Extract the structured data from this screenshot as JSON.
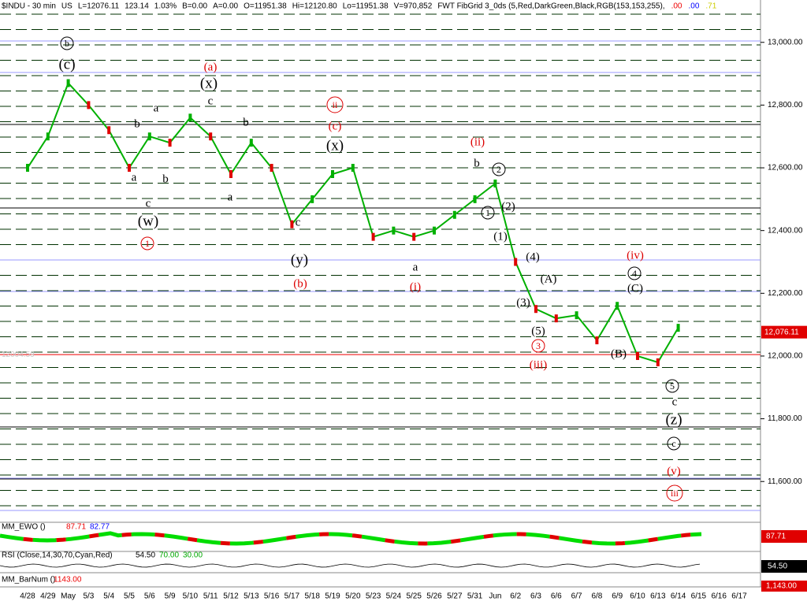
{
  "chart_data": {
    "type": "line",
    "header": [
      "$INDU - 30 min",
      "US",
      "L=12076.11",
      "123.14",
      "1.03%",
      "B=0.00",
      "A=0.00",
      "O=11951.38",
      "Hi=12120.80",
      "Lo=11951.38",
      "V=970,852",
      "FWT FibGrid 3_0ds (5,Red,DarkGreen,Black,RGB(153,153,255),",
      ".00",
      ".00",
      ".71"
    ],
    "categories": [
      "4/28",
      "4/29",
      "May",
      "5/3",
      "5/4",
      "5/5",
      "5/6",
      "5/9",
      "5/10",
      "5/11",
      "5/12",
      "5/13",
      "5/16",
      "5/17",
      "5/18",
      "5/19",
      "5/20",
      "5/23",
      "5/24",
      "5/25",
      "5/26",
      "5/27",
      "5/31",
      "Jun",
      "6/2",
      "6/3",
      "6/6",
      "6/7",
      "6/8",
      "6/9",
      "6/10",
      "6/13",
      "6/14",
      "6/15",
      "6/16",
      "6/17"
    ],
    "series": [
      {
        "name": "$INDU",
        "color": "#00b000",
        "down_color": "#e00000",
        "values": [
          12600,
          12700,
          12870,
          12800,
          12720,
          12600,
          12700,
          12680,
          12760,
          12700,
          12580,
          12680,
          12600,
          12420,
          12500,
          12580,
          12600,
          12380,
          12400,
          12380,
          12400,
          12450,
          12500,
          12550,
          12300,
          12150,
          12120,
          12130,
          12050,
          12160,
          12000,
          11980,
          12090,
          null,
          null,
          null
        ]
      }
    ],
    "ylim": [
      11470,
      13135
    ],
    "yticks": [
      {
        "value": 11600,
        "label": "11,600.00"
      },
      {
        "value": 11800,
        "label": "11,800.00"
      },
      {
        "value": 12000,
        "label": "12,000.00"
      },
      {
        "value": 12200,
        "label": "12,200.00"
      },
      {
        "value": 12400,
        "label": "12,400.00"
      },
      {
        "value": 12600,
        "label": "12,600.00"
      },
      {
        "value": 12800,
        "label": "12,800.00"
      },
      {
        "value": 13000,
        "label": "13,000.00"
      }
    ],
    "last_price": {
      "value": 12076.11,
      "label": "12,076.11"
    },
    "ref_price": {
      "value": 12004.59,
      "label": "12004.59"
    },
    "annotations": [
      {
        "text": "b",
        "circled": true,
        "color": "#000"
      },
      {
        "text": "(c)",
        "color": "#000"
      },
      {
        "text": "(a)",
        "color": "#d00"
      },
      {
        "text": "(x)",
        "color": "#000"
      },
      {
        "text": "c",
        "color": "#000"
      },
      {
        "text": "ii",
        "circled": true,
        "color": "#d00"
      },
      {
        "text": "(c)",
        "color": "#d00"
      },
      {
        "text": "(x)",
        "color": "#000"
      },
      {
        "text": "(ii)",
        "color": "#d00"
      },
      {
        "text": "b",
        "color": "#000"
      },
      {
        "text": "2",
        "circled": true,
        "color": "#000"
      },
      {
        "text": "(2)",
        "color": "#000"
      },
      {
        "text": "1",
        "circled": true,
        "color": "#000"
      },
      {
        "text": "(1)",
        "color": "#000"
      },
      {
        "text": "(4)",
        "color": "#000"
      },
      {
        "text": "(A)",
        "color": "#000"
      },
      {
        "text": "(3)",
        "color": "#000"
      },
      {
        "text": "(5)",
        "color": "#000"
      },
      {
        "text": "3",
        "circled": true,
        "color": "#d00"
      },
      {
        "text": "(iii)",
        "color": "#d00"
      },
      {
        "text": "(iv)",
        "color": "#d00"
      },
      {
        "text": "4",
        "circled": true,
        "color": "#000"
      },
      {
        "text": "(C)",
        "color": "#000"
      },
      {
        "text": "(B)",
        "color": "#000"
      },
      {
        "text": "5",
        "circled": true,
        "color": "#000"
      },
      {
        "text": "c",
        "color": "#000"
      },
      {
        "text": "(z)",
        "color": "#000"
      },
      {
        "text": "c",
        "circled": true,
        "color": "#000"
      },
      {
        "text": "(v)",
        "color": "#d00"
      },
      {
        "text": "iii",
        "circled": true,
        "color": "#d00"
      },
      {
        "text": "b",
        "color": "#000"
      },
      {
        "text": "a",
        "color": "#000"
      },
      {
        "text": "a",
        "color": "#000"
      },
      {
        "text": "b",
        "color": "#000"
      },
      {
        "text": "c",
        "color": "#000"
      },
      {
        "text": "(w)",
        "color": "#000"
      },
      {
        "text": "1",
        "circled": true,
        "color": "#d00"
      },
      {
        "text": "b",
        "color": "#000"
      },
      {
        "text": "a",
        "color": "#000"
      },
      {
        "text": "c",
        "color": "#000"
      },
      {
        "text": "(y)",
        "color": "#000"
      },
      {
        "text": "(b)",
        "color": "#d00"
      },
      {
        "text": "a",
        "color": "#000"
      },
      {
        "text": "(i)",
        "color": "#d00"
      }
    ],
    "ewo": {
      "title": "MM_EWO ()",
      "values": [
        87.71,
        82.77
      ],
      "value_labels": [
        "87.71",
        "82.77"
      ],
      "box": "87.71"
    },
    "rsi": {
      "title": "RSI (Close,14,30,70,Cyan,Red)",
      "values": [
        54.5,
        70,
        30
      ],
      "value_labels": [
        "54.50",
        "70.00",
        "30.00"
      ],
      "box": "54.50"
    },
    "barnum": {
      "title": "MM_BarNum ()",
      "value": 1143,
      "value_label": "1143.00",
      "box": "1,143.00"
    }
  }
}
